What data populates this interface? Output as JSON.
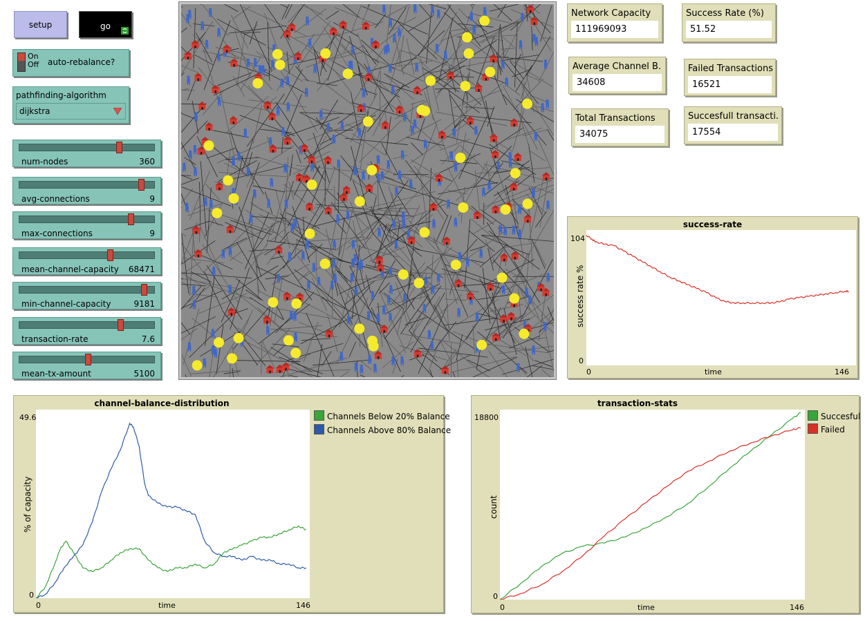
{
  "buttons": {
    "setup_label": "setup",
    "go_label": "go"
  },
  "switch": {
    "on_label": "On",
    "off_label": "Off",
    "label": "auto-rebalance?",
    "state": "Off"
  },
  "chooser": {
    "label": "pathfinding-algorithm",
    "value": "dijkstra"
  },
  "sliders": [
    {
      "label": "num-nodes",
      "value": "360",
      "position": 0.75
    },
    {
      "label": "avg-connections",
      "value": "9",
      "position": 0.92
    },
    {
      "label": "max-connections",
      "value": "9",
      "position": 0.84
    },
    {
      "label": "mean-channel-capacity",
      "value": "68471",
      "position": 0.68
    },
    {
      "label": "min-channel-capacity",
      "value": "9181",
      "position": 0.94
    },
    {
      "label": "transaction-rate",
      "value": "7.6",
      "position": 0.76
    },
    {
      "label": "mean-tx-amount",
      "value": "5100",
      "position": 0.51
    }
  ],
  "monitors": {
    "network_capacity": {
      "label": "Network Capacity",
      "value": "111969093"
    },
    "success_rate": {
      "label": "Success Rate (%)",
      "value": "51.52"
    },
    "avg_channel_balance": {
      "label": "Average Channel B...",
      "value": "34608"
    },
    "failed_tx": {
      "label": "Failed Transactions",
      "value": "16521"
    },
    "total_tx": {
      "label": "Total Transactions",
      "value": "34075"
    },
    "success_tx": {
      "label": "Succesfull transacti...",
      "value": "17554"
    }
  },
  "chart_data": [
    {
      "type": "line",
      "title": "success-rate",
      "xlabel": "time",
      "ylabel": "success rate %",
      "xlim": [
        0,
        146
      ],
      "ylim": [
        0,
        104
      ],
      "series": [
        {
          "color": "#d73027",
          "x": [
            0,
            3,
            5,
            10,
            15,
            20,
            25,
            30,
            35,
            40,
            45,
            50,
            55,
            60,
            65,
            70,
            75,
            80,
            85,
            90,
            95,
            100,
            105,
            110,
            115,
            120,
            125,
            130,
            135,
            140,
            142
          ],
          "y": [
            100,
            97,
            95,
            93,
            92,
            88,
            84,
            80,
            76,
            72,
            68,
            65,
            62,
            59,
            56,
            52,
            49,
            48,
            48,
            48,
            48,
            48,
            49,
            51,
            52,
            53,
            54,
            55,
            56,
            57,
            57
          ]
        }
      ]
    },
    {
      "type": "line",
      "title": "channel-balance-distribution",
      "xlabel": "time",
      "ylabel": "% of capacity",
      "xlim": [
        0,
        146
      ],
      "ylim": [
        0,
        49.6
      ],
      "legend": "right",
      "series": [
        {
          "name": "Channels Below 20% Balance",
          "color": "#3aa53a",
          "x": [
            0,
            5,
            10,
            13,
            16,
            20,
            25,
            30,
            35,
            40,
            45,
            50,
            55,
            60,
            65,
            70,
            75,
            80,
            85,
            90,
            95,
            100,
            105,
            110,
            115,
            120,
            125,
            130,
            135,
            140,
            144
          ],
          "y": [
            0,
            3,
            9,
            13,
            15,
            12,
            8,
            7,
            8,
            10,
            12,
            13,
            13,
            10,
            8,
            7,
            8,
            8,
            9,
            8,
            9,
            12,
            13,
            14,
            15,
            16,
            16,
            17,
            18,
            19,
            18
          ]
        },
        {
          "name": "Channels Above 80% Balance",
          "color": "#2d5aa8",
          "x": [
            0,
            5,
            10,
            15,
            20,
            25,
            30,
            35,
            40,
            45,
            50,
            52,
            55,
            58,
            60,
            65,
            70,
            75,
            80,
            85,
            90,
            95,
            100,
            105,
            110,
            115,
            120,
            125,
            130,
            135,
            140,
            144
          ],
          "y": [
            0,
            1,
            4,
            8,
            11,
            14,
            20,
            28,
            34,
            39,
            46,
            45,
            40,
            30,
            27,
            25,
            24,
            24,
            23,
            22,
            15,
            12,
            11,
            11,
            10,
            11,
            10,
            10,
            9,
            9,
            8,
            8
          ]
        }
      ]
    },
    {
      "type": "line",
      "title": "transaction-stats",
      "xlabel": "time",
      "ylabel": "count",
      "xlim": [
        0,
        146
      ],
      "ylim": [
        0,
        18800
      ],
      "legend": "right",
      "series": [
        {
          "name": "Succesful",
          "color": "#3aa53a",
          "x": [
            0,
            10,
            20,
            30,
            40,
            50,
            60,
            70,
            80,
            90,
            100,
            110,
            120,
            130,
            140,
            144
          ],
          "y": [
            0,
            1600,
            3300,
            4600,
            5300,
            5600,
            6200,
            7100,
            8200,
            9500,
            11200,
            13000,
            14700,
            16300,
            17900,
            18500
          ]
        },
        {
          "name": "Failed",
          "color": "#d73027",
          "x": [
            0,
            10,
            20,
            30,
            40,
            50,
            60,
            70,
            80,
            90,
            100,
            110,
            120,
            130,
            140,
            144
          ],
          "y": [
            0,
            600,
            1500,
            2800,
            4400,
            6300,
            8000,
            9600,
            11200,
            12700,
            13700,
            14700,
            15500,
            16200,
            16800,
            17000
          ]
        }
      ]
    }
  ]
}
